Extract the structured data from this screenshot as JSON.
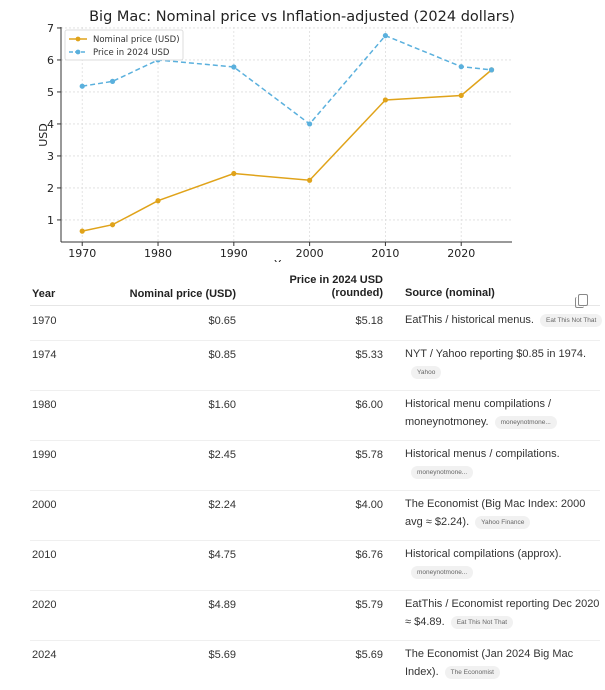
{
  "chart_data": {
    "type": "line",
    "title": "Big Mac: Nominal price vs Inflation-adjusted (2024 dollars)",
    "xlabel": "Year",
    "ylabel": "USD",
    "x": [
      1970,
      1974,
      1980,
      1990,
      2000,
      2010,
      2020,
      2024
    ],
    "xticks": [
      1970,
      1980,
      1990,
      2000,
      2010,
      2020
    ],
    "yticks": [
      1,
      2,
      3,
      4,
      5,
      6,
      7
    ],
    "xlim": [
      1967.2,
      2026.7
    ],
    "ylim": [
      0.31,
      7.03
    ],
    "grid": true,
    "legend": "top-left",
    "series": [
      {
        "name": "Nominal price (USD)",
        "values": [
          0.65,
          0.85,
          1.6,
          2.45,
          2.24,
          4.75,
          4.89,
          5.69
        ],
        "color": "#e0a31a",
        "style": "solid"
      },
      {
        "name": "Price in 2024 USD",
        "values": [
          5.18,
          5.33,
          6.0,
          5.78,
          4.0,
          6.76,
          5.79,
          5.69
        ],
        "color": "#5ab0dd",
        "style": "dashed"
      }
    ]
  },
  "table": {
    "headers": {
      "year": "Year",
      "nominal": "Nominal price (USD)",
      "adjusted_1": "Price in 2024 USD",
      "adjusted_2": "(rounded)",
      "source": "Source (nominal)"
    },
    "copy_icon": "copy-icon",
    "rows": [
      {
        "year": "1970",
        "nominal": "$0.65",
        "adjusted": "$5.18",
        "source": "EatThis / historical menus.",
        "chip": "Eat This Not That"
      },
      {
        "year": "1974",
        "nominal": "$0.85",
        "adjusted": "$5.33",
        "source": "NYT / Yahoo reporting $0.85 in 1974.",
        "chip": "Yahoo"
      },
      {
        "year": "1980",
        "nominal": "$1.60",
        "adjusted": "$6.00",
        "source": "Historical menu compilations / moneynotmoney.",
        "chip": "moneynotmone..."
      },
      {
        "year": "1990",
        "nominal": "$2.45",
        "adjusted": "$5.78",
        "source": "Historical menus / compilations.",
        "chip": "moneynotmone..."
      },
      {
        "year": "2000",
        "nominal": "$2.24",
        "adjusted": "$4.00",
        "source": "The Economist (Big Mac Index: 2000 avg ≈ $2.24).",
        "chip": "Yahoo Finance"
      },
      {
        "year": "2010",
        "nominal": "$4.75",
        "adjusted": "$6.76",
        "source": "Historical compilations (approx).",
        "chip": "moneynotmone..."
      },
      {
        "year": "2020",
        "nominal": "$4.89",
        "adjusted": "$5.79",
        "source": "EatThis / Economist reporting Dec 2020 ≈ $4.89.",
        "chip": "Eat This Not That"
      },
      {
        "year": "2024",
        "nominal": "$5.69",
        "adjusted": "$5.69",
        "source": "The Economist (Jan 2024 Big Mac Index).",
        "chip": "The Economist"
      }
    ]
  }
}
